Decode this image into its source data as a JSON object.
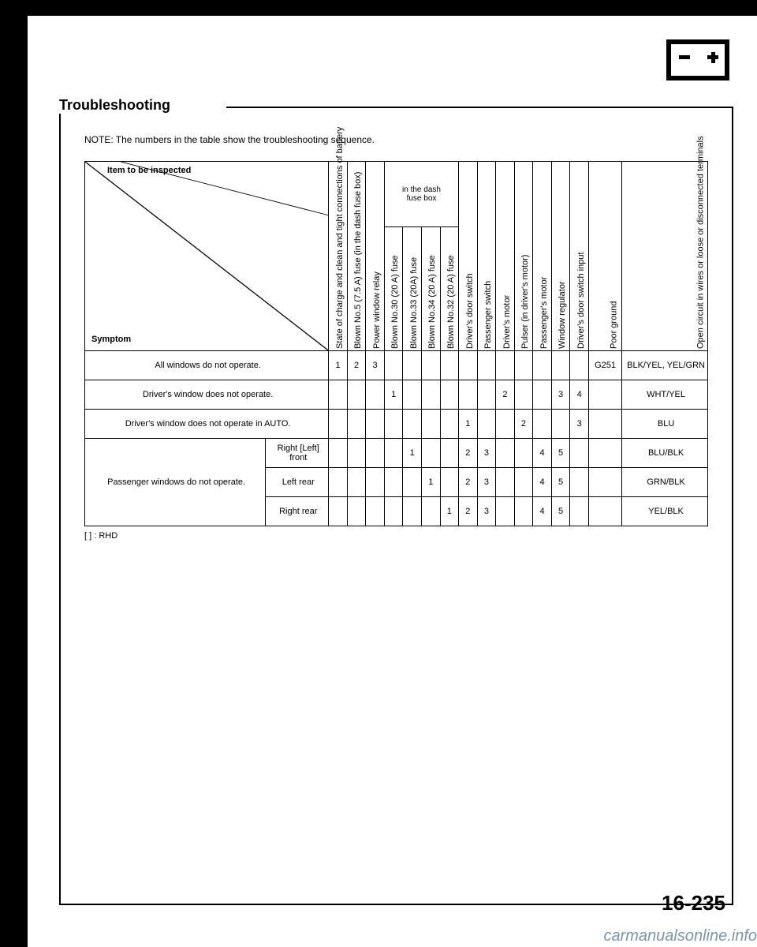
{
  "title": "Troubleshooting",
  "note": "NOTE: The numbers in the table show the troubleshooting sequence.",
  "corner": {
    "item": "Item to be inspected",
    "symptom": "Symptom"
  },
  "dash_group": "in the dash\nfuse box",
  "columns": [
    "State of charge and clean and tight connections of battery",
    "Blown No.5 (7.5 A) fuse (in the dash fuse box)",
    "Power window relay",
    "Blown No.30 (20 A) fuse",
    "Blown No.33 (20A) fuse",
    "Blown No.34 (20 A) fuse",
    "Blown No.32 (20 A) fuse",
    "Driver's door switch",
    "Passenger switch",
    "Driver's motor",
    "Pulser (in driver's motor)",
    "Passenger's motor",
    "Window regulator",
    "Driver's door switch input",
    "Poor ground",
    "Open circuit in wires or loose or disconnected terminals"
  ],
  "rows": [
    {
      "symptom": "All windows do not operate.",
      "c": [
        "1",
        "2",
        "3",
        "",
        "",
        "",
        "",
        "",
        "",
        "",
        "",
        "",
        "",
        "",
        "G251",
        "BLK/YEL, YEL/GRN"
      ]
    },
    {
      "symptom": "Driver's window does not operate.",
      "c": [
        "",
        "",
        "",
        "1",
        "",
        "",
        "",
        "",
        "",
        "2",
        "",
        "",
        "3",
        "4",
        "",
        "WHT/YEL"
      ]
    },
    {
      "symptom": "Driver's window does not operate in AUTO.",
      "c": [
        "",
        "",
        "",
        "",
        "",
        "",
        "",
        "1",
        "",
        "",
        "2",
        "",
        "",
        "3",
        "",
        "BLU"
      ]
    },
    {
      "group": "Passenger windows do not operate.",
      "sub": "Right [Left] front",
      "c": [
        "",
        "",
        "",
        "",
        "1",
        "",
        "",
        "2",
        "3",
        "",
        "",
        "4",
        "5",
        "",
        "",
        "BLU/BLK"
      ]
    },
    {
      "sub": "Left rear",
      "c": [
        "",
        "",
        "",
        "",
        "",
        "1",
        "",
        "2",
        "3",
        "",
        "",
        "4",
        "5",
        "",
        "",
        "GRN/BLK"
      ]
    },
    {
      "sub": "Right rear",
      "c": [
        "",
        "",
        "",
        "",
        "",
        "",
        "1",
        "2",
        "3",
        "",
        "",
        "4",
        "5",
        "",
        "",
        "YEL/BLK"
      ]
    }
  ],
  "rhd_note": "[  ] : RHD",
  "page_number": "16-235",
  "watermark": "carmanualsonline.info"
}
